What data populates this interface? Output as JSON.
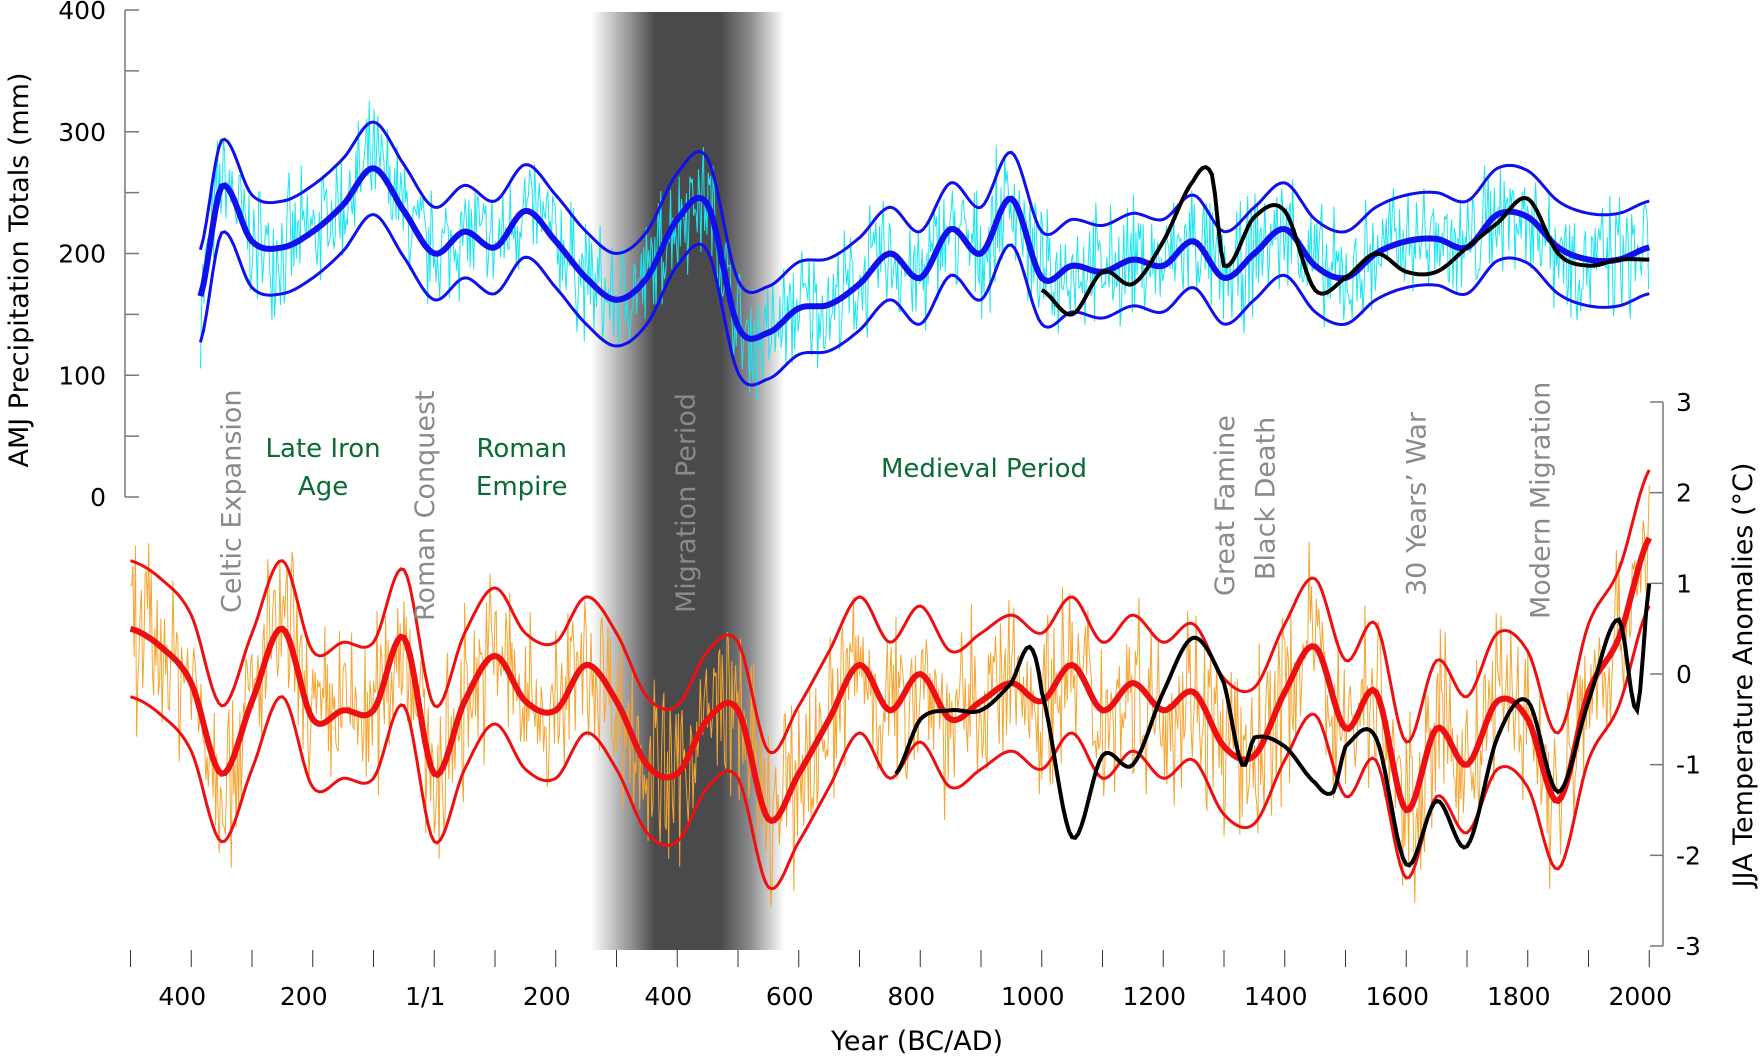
{
  "chart_data": {
    "type": "line",
    "xlabel": "Year (BC/AD)",
    "ylabel_left": "AMJ Precipitation Totals (mm)",
    "ylabel_right": "JJA Temperature Anomalies (°C)",
    "xlim": [
      -500,
      2000
    ],
    "ylim_left": [
      0,
      400
    ],
    "ylim_right": [
      -3,
      3
    ],
    "x_ticks": [
      {
        "value": -400,
        "label": "400"
      },
      {
        "value": -200,
        "label": "200"
      },
      {
        "value": 0,
        "label": "1/1"
      },
      {
        "value": 200,
        "label": "200"
      },
      {
        "value": 400,
        "label": "400"
      },
      {
        "value": 600,
        "label": "600"
      },
      {
        "value": 800,
        "label": "800"
      },
      {
        "value": 1000,
        "label": "1000"
      },
      {
        "value": 1200,
        "label": "1200"
      },
      {
        "value": 1400,
        "label": "1400"
      },
      {
        "value": 1600,
        "label": "1600"
      },
      {
        "value": 1800,
        "label": "1800"
      },
      {
        "value": 2000,
        "label": "2000"
      }
    ],
    "y_ticks_left": [
      "0",
      "100",
      "200",
      "300",
      "400"
    ],
    "y_ticks_right": [
      "-3",
      "-2",
      "-1",
      "0",
      "1",
      "2",
      "3"
    ],
    "grid": false,
    "shaded_period": {
      "label": "Migration Period",
      "from": 258,
      "to": 576
    },
    "annotations": [
      {
        "text": "Celtic Expansion",
        "year": -335,
        "kind": "event"
      },
      {
        "text": "Roman Conquest",
        "year": -17,
        "kind": "event"
      },
      {
        "text": "Migration Period",
        "year": 413,
        "kind": "shaded"
      },
      {
        "text": "Great Famine",
        "year": 1300,
        "kind": "event"
      },
      {
        "text": "Black Death",
        "year": 1367,
        "kind": "event"
      },
      {
        "text": "30 Years’ War",
        "year": 1615,
        "kind": "event"
      },
      {
        "text": "Modern Migration",
        "year": 1819,
        "kind": "event"
      },
      {
        "text": [
          "Late Iron",
          "Age"
        ],
        "year": -183,
        "kind": "era"
      },
      {
        "text": [
          "Roman",
          "Empire"
        ],
        "year": 144,
        "kind": "era"
      },
      {
        "text": [
          "Medieval Period"
        ],
        "year": 905,
        "kind": "era"
      }
    ],
    "series": [
      {
        "name": "precipitation-mean",
        "axis": "left",
        "color": "#1010ee",
        "x": [
          -385,
          -350,
          -300,
          -250,
          -200,
          -150,
          -100,
          -50,
          0,
          50,
          100,
          150,
          200,
          250,
          300,
          350,
          400,
          450,
          500,
          550,
          600,
          650,
          700,
          750,
          800,
          850,
          900,
          950,
          1000,
          1050,
          1100,
          1150,
          1200,
          1250,
          1300,
          1350,
          1400,
          1450,
          1500,
          1550,
          1600,
          1650,
          1700,
          1750,
          1800,
          1850,
          1900,
          1950,
          2000
        ],
        "y": [
          165,
          255,
          210,
          205,
          218,
          240,
          270,
          235,
          200,
          218,
          205,
          235,
          210,
          180,
          162,
          180,
          228,
          240,
          140,
          135,
          155,
          158,
          175,
          200,
          180,
          220,
          200,
          245,
          180,
          190,
          185,
          195,
          190,
          210,
          180,
          200,
          220,
          190,
          180,
          200,
          210,
          212,
          205,
          232,
          230,
          205,
          195,
          195,
          205
        ],
        "band_halfwidth": 38
      },
      {
        "name": "precipitation-instrumental",
        "axis": "left",
        "color": "#000000",
        "x": [
          1000,
          1050,
          1100,
          1150,
          1200,
          1250,
          1280,
          1300,
          1350,
          1400,
          1450,
          1500,
          1550,
          1600,
          1650,
          1700,
          1750,
          1800,
          1850,
          1900,
          1950,
          2000
        ],
        "y": [
          170,
          150,
          185,
          175,
          210,
          260,
          265,
          190,
          230,
          235,
          170,
          180,
          200,
          185,
          185,
          205,
          225,
          245,
          200,
          190,
          195,
          195
        ]
      },
      {
        "name": "temperature-mean",
        "axis": "right",
        "color": "#ee1010",
        "x": [
          -500,
          -450,
          -400,
          -350,
          -300,
          -250,
          -200,
          -150,
          -100,
          -50,
          0,
          50,
          100,
          150,
          200,
          250,
          300,
          350,
          400,
          450,
          500,
          550,
          600,
          650,
          700,
          750,
          800,
          850,
          900,
          950,
          1000,
          1050,
          1100,
          1150,
          1200,
          1250,
          1300,
          1350,
          1400,
          1450,
          1500,
          1550,
          1600,
          1650,
          1700,
          1750,
          1800,
          1850,
          1900,
          1950,
          2000
        ],
        "y": [
          0.5,
          0.3,
          -0.1,
          -1.1,
          -0.3,
          0.5,
          -0.5,
          -0.4,
          -0.4,
          0.4,
          -1.1,
          -0.3,
          0.2,
          -0.3,
          -0.4,
          0.1,
          -0.3,
          -1.0,
          -1.1,
          -0.5,
          -0.4,
          -1.6,
          -1.1,
          -0.5,
          0.1,
          -0.4,
          0.0,
          -0.5,
          -0.3,
          -0.1,
          -0.3,
          0.1,
          -0.4,
          -0.1,
          -0.4,
          -0.2,
          -0.8,
          -0.9,
          -0.2,
          0.3,
          -0.6,
          -0.2,
          -1.5,
          -0.6,
          -1.0,
          -0.3,
          -0.5,
          -1.4,
          -0.2,
          0.4,
          1.5
        ],
        "band_halfwidth": 0.75
      },
      {
        "name": "temperature-instrumental",
        "axis": "right",
        "color": "#000000",
        "x": [
          760,
          800,
          850,
          900,
          950,
          980,
          1000,
          1050,
          1100,
          1150,
          1200,
          1250,
          1300,
          1330,
          1350,
          1400,
          1450,
          1480,
          1500,
          1550,
          1600,
          1650,
          1700,
          1750,
          1800,
          1850,
          1900,
          1950,
          1980,
          2000
        ],
        "y": [
          -1.1,
          -0.5,
          -0.4,
          -0.4,
          -0.1,
          0.3,
          -0.2,
          -1.8,
          -0.9,
          -1.0,
          -0.2,
          0.4,
          -0.1,
          -1.0,
          -0.7,
          -0.8,
          -1.2,
          -1.3,
          -0.8,
          -0.7,
          -2.1,
          -1.4,
          -1.9,
          -0.7,
          -0.3,
          -1.3,
          -0.3,
          0.6,
          -0.4,
          1.0
        ]
      }
    ],
    "noise_colors": {
      "precipitation": "#19e6f0",
      "temperature": "#f5a530"
    }
  }
}
